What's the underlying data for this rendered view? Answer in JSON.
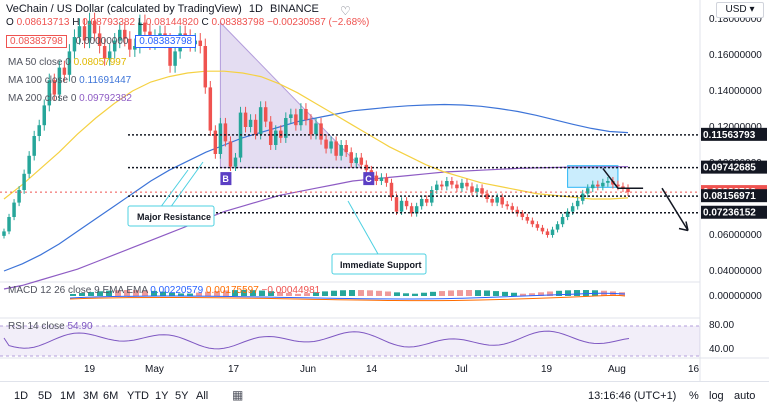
{
  "header": {
    "title": "VeChain / US Dollar (calculated by TradingView)",
    "interval": "1D",
    "exchange": "BINANCE",
    "open_label": "O",
    "open_value": "0.08613713",
    "high_label": "H",
    "high_value": "0.08793382",
    "low_label": "L",
    "low_value": "0.08144820",
    "close_label": "C",
    "close_value": "0.08383798",
    "change": "−0.00230587 (−2.68%)",
    "sell_price": "0.08383798",
    "spread": "0.00000000",
    "buy_price": "0.08383798",
    "currency_button": "USD"
  },
  "indicators": {
    "ma50": {
      "label": "MA 50 close 0",
      "value": "0.08057997"
    },
    "ma100": {
      "label": "MA 100 close 0",
      "value": "0.11691447"
    },
    "ma200": {
      "label": "MA 200 close 0",
      "value": "0.09792382"
    },
    "macd": {
      "label": "MACD 12 26 close 9 EMA EMA",
      "v1": "0.00220579",
      "v2": "0.00175597",
      "v3": "−0.00044981"
    },
    "rsi": {
      "label": "RSI 14 close",
      "value": "54.90"
    }
  },
  "annotations": {
    "major_resistance": "Major Resistance",
    "immediate_support": "Immediate Support",
    "marker_b": "B",
    "marker_c": "C"
  },
  "bottom_bar": {
    "ranges": [
      "1D",
      "5D",
      "1M",
      "3M",
      "6M",
      "YTD",
      "1Y",
      "5Y",
      "All"
    ],
    "time": "13:16:46 (UTC+1)",
    "percent": "%",
    "log": "log",
    "auto": "auto"
  },
  "colors": {
    "up": "#26a69a",
    "down": "#ef5350",
    "ma50": "#f5d142",
    "ma100": "#3d74d8",
    "ma200": "#8e5cc4",
    "triangle": "#b39ddb",
    "rsi": "#7e57c2"
  },
  "chart_data": {
    "type": "candlestick",
    "x_tick_labels": [
      "19",
      "May",
      "17",
      "Jun",
      "14",
      "Jul",
      "19",
      "Aug",
      "16"
    ],
    "price_axis_labels": [
      "0.18000000",
      "0.16000000",
      "0.14000000",
      "0.12000000",
      "0.10000000",
      "0.08000000",
      "0.06000000",
      "0.04000000"
    ],
    "ylim": [
      0.035,
      0.185
    ],
    "levels": [
      {
        "value": 0.11563793,
        "label": "0.11563793",
        "color": "#131722"
      },
      {
        "value": 0.09742685,
        "label": "0.09742685",
        "color": "#131722"
      },
      {
        "value": 0.08383798,
        "label": "0.08383798",
        "color": "#ef5350"
      },
      {
        "value": 0.08156971,
        "label": "0.08156971",
        "color": "#131722"
      },
      {
        "value": 0.07236152,
        "label": "0.07236152",
        "color": "#131722"
      }
    ],
    "macd_axis_label": "0.00000000",
    "rsi_axis_labels": [
      "80.00",
      "40.00"
    ],
    "rsi_band": [
      30,
      70
    ],
    "closes": [
      0.062,
      0.07,
      0.078,
      0.085,
      0.094,
      0.104,
      0.115,
      0.121,
      0.132,
      0.146,
      0.138,
      0.153,
      0.149,
      0.162,
      0.17,
      0.176,
      0.168,
      0.179,
      0.172,
      0.165,
      0.158,
      0.162,
      0.168,
      0.174,
      0.169,
      0.163,
      0.165,
      0.178,
      0.173,
      0.167,
      0.17,
      0.172,
      0.168,
      0.154,
      0.162,
      0.172,
      0.17,
      0.166,
      0.168,
      0.165,
      0.142,
      0.118,
      0.105,
      0.122,
      0.112,
      0.098,
      0.103,
      0.128,
      0.12,
      0.124,
      0.116,
      0.131,
      0.123,
      0.11,
      0.118,
      0.114,
      0.125,
      0.127,
      0.121,
      0.13,
      0.124,
      0.116,
      0.122,
      0.113,
      0.108,
      0.112,
      0.104,
      0.11,
      0.106,
      0.1,
      0.103,
      0.099,
      0.096,
      0.093,
      0.09,
      0.092,
      0.089,
      0.081,
      0.073,
      0.079,
      0.076,
      0.072,
      0.076,
      0.08,
      0.078,
      0.085,
      0.088,
      0.087,
      0.09,
      0.088,
      0.086,
      0.089,
      0.087,
      0.084,
      0.086,
      0.083,
      0.08,
      0.078,
      0.081,
      0.077,
      0.076,
      0.074,
      0.072,
      0.07,
      0.068,
      0.066,
      0.064,
      0.062,
      0.06,
      0.063,
      0.066,
      0.07,
      0.073,
      0.076,
      0.079,
      0.083,
      0.086,
      0.088,
      0.087,
      0.089,
      0.09,
      0.088,
      0.087,
      0.086,
      0.08383798
    ],
    "ma50": [
      0.08,
      0.088,
      0.097,
      0.106,
      0.116,
      0.125,
      0.133,
      0.14,
      0.145,
      0.148,
      0.15,
      0.151,
      0.151,
      0.15,
      0.148,
      0.144,
      0.139,
      0.133,
      0.127,
      0.121,
      0.115,
      0.109,
      0.104,
      0.099,
      0.095,
      0.092,
      0.089,
      0.087,
      0.085,
      0.083,
      0.082,
      0.081,
      0.08,
      0.08,
      0.0806
    ],
    "ma100": [
      0.04,
      0.044,
      0.049,
      0.055,
      0.062,
      0.069,
      0.076,
      0.083,
      0.09,
      0.096,
      0.101,
      0.106,
      0.11,
      0.114,
      0.117,
      0.12,
      0.123,
      0.125,
      0.127,
      0.129,
      0.13,
      0.131,
      0.1318,
      0.1322,
      0.1325,
      0.1322,
      0.1315,
      0.1302,
      0.1286,
      0.1265,
      0.124,
      0.1215,
      0.1192,
      0.1175,
      0.1169
    ],
    "ma200": [
      0.03,
      0.032,
      0.035,
      0.038,
      0.041,
      0.045,
      0.049,
      0.053,
      0.057,
      0.061,
      0.065,
      0.069,
      0.073,
      0.076,
      0.079,
      0.082,
      0.084,
      0.086,
      0.088,
      0.09,
      0.091,
      0.092,
      0.093,
      0.094,
      0.095,
      0.0955,
      0.096,
      0.0965,
      0.097,
      0.0973,
      0.0975,
      0.0977,
      0.0978,
      0.0979,
      0.09792
    ]
  }
}
